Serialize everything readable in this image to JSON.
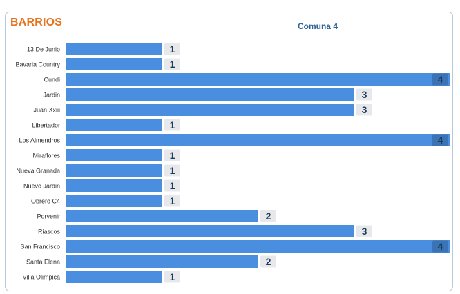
{
  "card": {
    "title": "BARRIOS"
  },
  "chart_data": {
    "type": "bar",
    "orientation": "horizontal",
    "title": "Comuna 4",
    "xlabel": "",
    "ylabel": "",
    "xlim": [
      0,
      4
    ],
    "grid": false,
    "legend": "none",
    "bar_color": "#4a8fdf",
    "label_color": "#1f3b57",
    "categories": [
      "13 De Junio",
      "Bavaria Country",
      "Cundi",
      "Jardin",
      "Juan Xxiii",
      "Libertador",
      "Los Almendros",
      "Miraflores",
      "Nueva Granada",
      "Nuevo Jardin",
      "Obrero C4",
      "Porvenir",
      "Riascos",
      "San Francisco",
      "Santa Elena",
      "Villa Olimpica"
    ],
    "values": [
      1,
      1,
      4,
      3,
      3,
      1,
      4,
      1,
      1,
      1,
      1,
      2,
      3,
      4,
      2,
      1
    ]
  }
}
